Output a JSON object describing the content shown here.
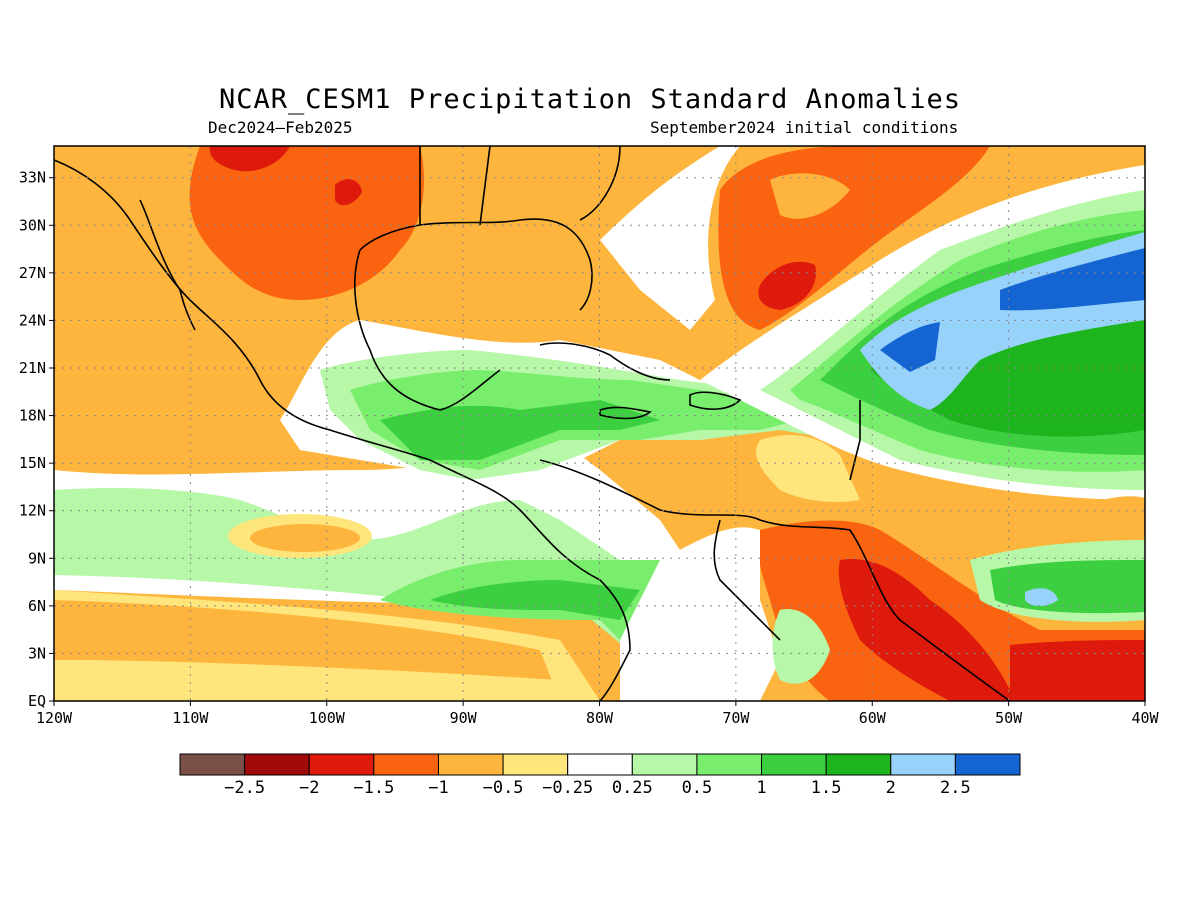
{
  "title": "NCAR_CESM1 Precipitation Standard Anomalies",
  "subtitle_left": "Dec2024–Feb2025",
  "subtitle_right": "September2024 initial conditions",
  "map": {
    "region": "Central America / Caribbean / Gulf of Mexico",
    "lon_range": [
      -120,
      -40
    ],
    "lat_range": [
      0,
      35
    ],
    "lat_ticks": [
      "33N",
      "30N",
      "27N",
      "24N",
      "21N",
      "18N",
      "15N",
      "12N",
      "9N",
      "6N",
      "3N",
      "EQ"
    ],
    "lon_ticks": [
      "120W",
      "110W",
      "100W",
      "90W",
      "80W",
      "70W",
      "60W",
      "50W",
      "40W"
    ],
    "grid": true
  },
  "colorbar": {
    "colors": [
      "#7a5048",
      "#a00a0a",
      "#dd1a0c",
      "#fa6410",
      "#fdb53e",
      "#fee57c",
      "#ffffff",
      "#b7f7a8",
      "#78ee6c",
      "#3ccf40",
      "#1eb41e",
      "#96d2fa",
      "#1464d2"
    ],
    "labels": [
      "−2.5",
      "−2",
      "−1.5",
      "−1",
      "−0.5",
      "−0.25",
      "0.25",
      "0.5",
      "1",
      "1.5",
      "2",
      "2.5"
    ]
  }
}
